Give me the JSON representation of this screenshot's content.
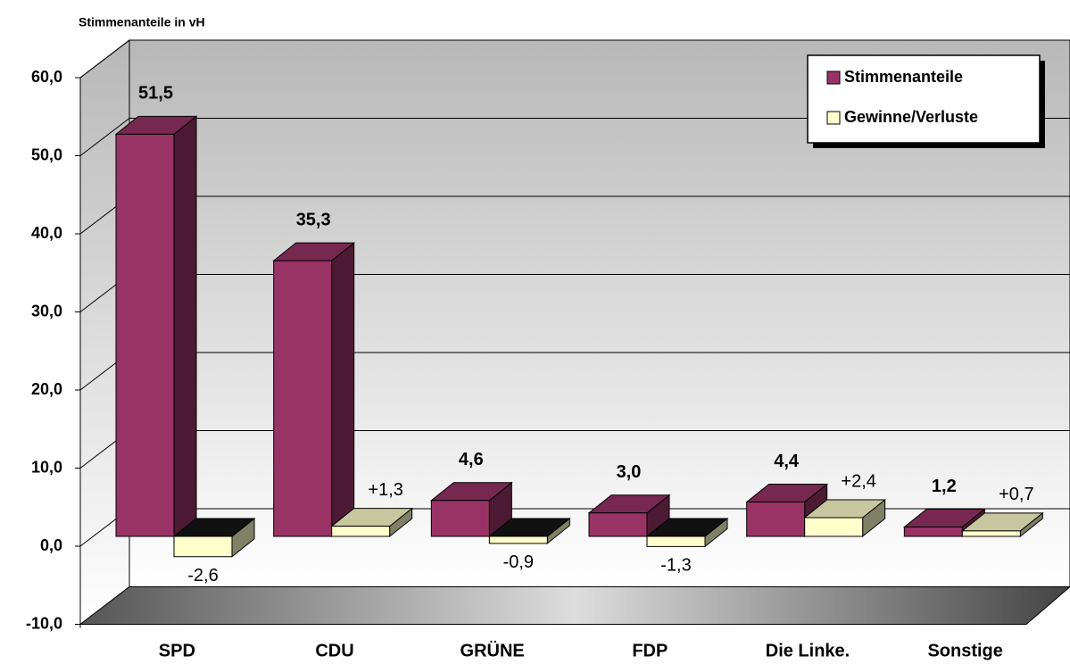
{
  "chart_data": {
    "type": "bar3d",
    "y_axis_label": "Stimmenanteile in vH",
    "categories": [
      "SPD",
      "CDU",
      "GRÜNE",
      "FDP",
      "Die Linke.",
      "Sonstige"
    ],
    "series": [
      {
        "name": "Stimmenanteile",
        "color": "#993366",
        "values": [
          51.5,
          35.3,
          4.6,
          3.0,
          4.4,
          1.2
        ],
        "value_labels": [
          "51,5",
          "35,3",
          "4,6",
          "3,0",
          "4,4",
          "1,2"
        ]
      },
      {
        "name": "Gewinne/Verluste",
        "color": "#ffffcc",
        "values": [
          -2.6,
          1.3,
          -0.9,
          -1.3,
          2.4,
          0.7
        ],
        "value_labels": [
          "-2,6",
          "+1,3",
          "-0,9",
          "-1,3",
          "+2,4",
          "+0,7"
        ]
      }
    ],
    "ylim": [
      -10,
      60
    ],
    "yticks": [
      {
        "value": -10,
        "label": "-10,0"
      },
      {
        "value": 0,
        "label": "0,0"
      },
      {
        "value": 10,
        "label": "10,0"
      },
      {
        "value": 20,
        "label": "20,0"
      },
      {
        "value": 30,
        "label": "30,0"
      },
      {
        "value": 40,
        "label": "40,0"
      },
      {
        "value": 50,
        "label": "50,0"
      },
      {
        "value": 60,
        "label": "60,0"
      }
    ],
    "grid": true,
    "legend": "top-right"
  }
}
